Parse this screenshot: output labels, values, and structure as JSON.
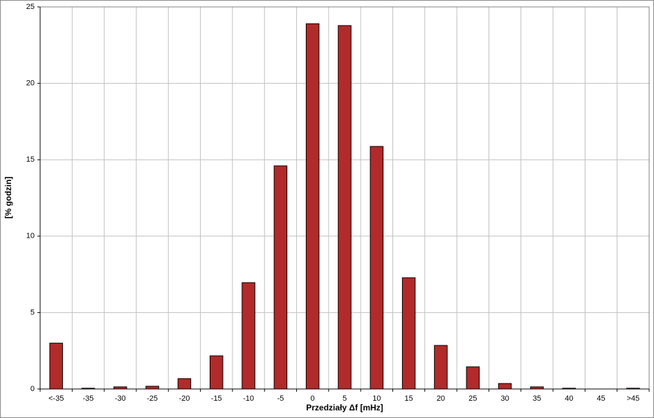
{
  "chart_data": {
    "type": "bar",
    "x_label": "Przedziały Δf [mHz]",
    "y_label": "[% godzin]",
    "categories": [
      "<-35",
      "-35",
      "-30",
      "-25",
      "-20",
      "-15",
      "-10",
      "-5",
      "0",
      "5",
      "10",
      "15",
      "20",
      "25",
      "30",
      "35",
      "40",
      "45",
      ">45"
    ],
    "values": [
      3.0,
      0.05,
      0.14,
      0.18,
      0.68,
      2.17,
      6.96,
      14.6,
      23.9,
      23.78,
      15.87,
      7.28,
      2.85,
      1.45,
      0.36,
      0.14,
      0.05,
      0,
      0.05
    ],
    "color": "#b22a2a",
    "ylim": [
      0,
      25
    ],
    "yticks": [
      0,
      5,
      10,
      15,
      20,
      25
    ],
    "grid": true
  }
}
